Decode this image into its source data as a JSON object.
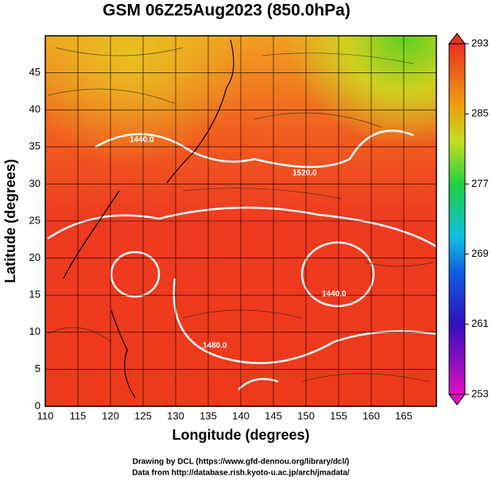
{
  "title": "GSM 06Z25Aug2023 (850.0hPa)",
  "x_axis": {
    "label": "Longitude (degrees)",
    "range": [
      110,
      170
    ],
    "ticks": [
      110,
      115,
      120,
      125,
      130,
      135,
      140,
      145,
      150,
      155,
      160,
      165
    ]
  },
  "y_axis": {
    "label": "Latitude  (degrees)",
    "range": [
      0,
      50
    ],
    "ticks": [
      0,
      5,
      10,
      15,
      20,
      25,
      30,
      35,
      40,
      45
    ]
  },
  "colorbar": {
    "range": [
      253,
      293
    ],
    "ticks": [
      253,
      261,
      269,
      277,
      285,
      293
    ]
  },
  "contour_labels": [
    "1440.0",
    "1520.0",
    "1440.0",
    "1480.0"
  ],
  "credits": [
    "Drawing by DCL (https://www.gfd-dennou.org/library/dcl/)",
    "Data from http://database.rish.kyoto-u.ac.jp/arch/jmadata/"
  ]
}
